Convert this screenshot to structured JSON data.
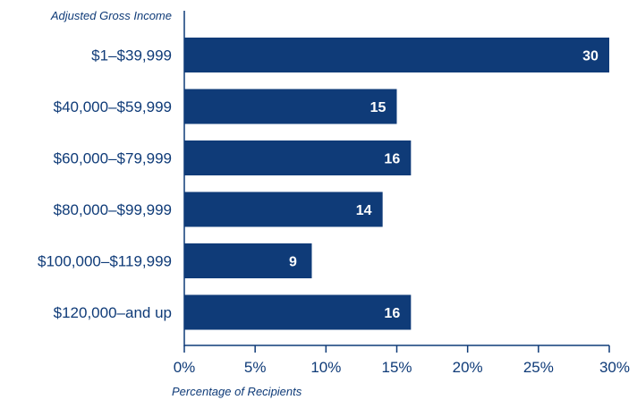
{
  "chart_data": {
    "type": "bar",
    "orientation": "horizontal",
    "title": "",
    "ylabel": "Adjusted Gross Income",
    "xlabel": "Percentage of Recipients",
    "categories": [
      "$1–$39,999",
      "$40,000–$59,999",
      "$60,000–$79,999",
      "$80,000–$99,999",
      "$100,000–$119,999",
      "$120,000–and up"
    ],
    "values": [
      30,
      15,
      16,
      14,
      9,
      16
    ],
    "data_labels": [
      "30",
      "15",
      "16",
      "14",
      "9",
      "16"
    ],
    "xlim": [
      0,
      30
    ],
    "xticks": [
      0,
      5,
      10,
      15,
      20,
      25,
      30
    ],
    "xtick_labels": [
      "0%",
      "5%",
      "10%",
      "15%",
      "20%",
      "25%",
      "30%"
    ],
    "grid": false,
    "legend": "none"
  },
  "colors": {
    "bar": "#0f3b78",
    "text": "#0f3b78",
    "axis": "#0f3b78",
    "bar_label": "#ffffff"
  }
}
